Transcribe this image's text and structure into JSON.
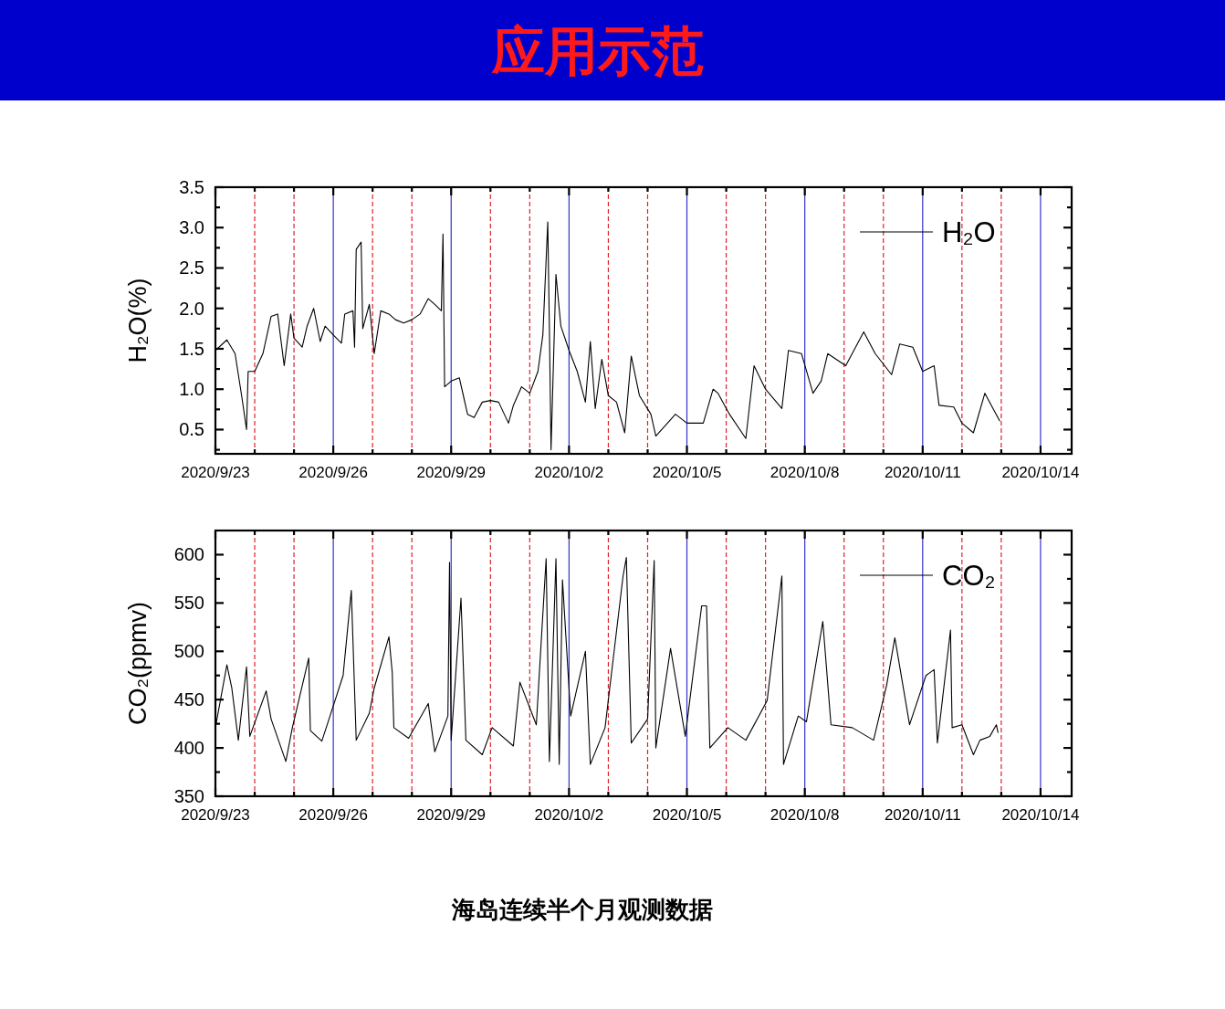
{
  "chart_data": [
    {
      "type": "line",
      "title": "应用示范",
      "ylabel": "H₂O(%)",
      "legend": "top right",
      "grid": false,
      "xlim": [
        "2020-09-23",
        "2020-10-14T19:00"
      ],
      "xticks": [
        {
          "value": "2020-09-23",
          "label": "2020/9/23"
        },
        {
          "value": "2020-09-24",
          "label": null
        },
        {
          "value": "2020-09-25",
          "label": null
        },
        {
          "value": "2020-09-26",
          "label": "2020/9/26"
        },
        {
          "value": "2020-09-27",
          "label": null
        },
        {
          "value": "2020-09-28",
          "label": null
        },
        {
          "value": "2020-09-29",
          "label": "2020/9/29"
        },
        {
          "value": "2020-09-30",
          "label": null
        },
        {
          "value": "2020-10-01",
          "label": null
        },
        {
          "value": "2020-10-02",
          "label": "2020/10/2"
        },
        {
          "value": "2020-10-03",
          "label": null
        },
        {
          "value": "2020-10-04",
          "label": null
        },
        {
          "value": "2020-10-05",
          "label": "2020/10/5"
        },
        {
          "value": "2020-10-06",
          "label": null
        },
        {
          "value": "2020-10-07",
          "label": null
        },
        {
          "value": "2020-10-08",
          "label": "2020/10/8"
        },
        {
          "value": "2020-10-09",
          "label": null
        },
        {
          "value": "2020-10-10",
          "label": null
        },
        {
          "value": "2020-10-11",
          "label": "2020/10/11"
        },
        {
          "value": "2020-10-12",
          "label": null
        },
        {
          "value": "2020-10-13",
          "label": null
        },
        {
          "value": "2020-10-14",
          "label": "2020/10/14"
        }
      ],
      "ylim": [
        0.2,
        3.5
      ],
      "yticks": [
        {
          "value": 0.25,
          "label": null
        },
        {
          "value": 0.5,
          "label": "0.5"
        },
        {
          "value": 0.75,
          "label": null
        },
        {
          "value": 1,
          "label": "1.0"
        },
        {
          "value": 1.25,
          "label": null
        },
        {
          "value": 1.5,
          "label": "1.5"
        },
        {
          "value": 1.75,
          "label": null
        },
        {
          "value": 2,
          "label": "2.0"
        },
        {
          "value": 2.25,
          "label": null
        },
        {
          "value": 2.5,
          "label": "2.5"
        },
        {
          "value": 2.75,
          "label": null
        },
        {
          "value": 3,
          "label": "3.0"
        },
        {
          "value": 3.25,
          "label": null
        },
        {
          "value": 3.5,
          "label": "3.5"
        }
      ],
      "ref_lines": [
        {
          "axis": "x",
          "value": "2020-09-24",
          "color": "#e0202a",
          "line_style": "dashed"
        },
        {
          "axis": "x",
          "value": "2020-09-25",
          "color": "#e0202a",
          "line_style": "dashed"
        },
        {
          "axis": "x",
          "value": "2020-09-26",
          "color": "#3333cc",
          "line_style": "solid"
        },
        {
          "axis": "x",
          "value": "2020-09-27",
          "color": "#e0202a",
          "line_style": "dashed"
        },
        {
          "axis": "x",
          "value": "2020-09-28",
          "color": "#e0202a",
          "line_style": "dashed"
        },
        {
          "axis": "x",
          "value": "2020-09-29",
          "color": "#3333cc",
          "line_style": "solid"
        },
        {
          "axis": "x",
          "value": "2020-09-30",
          "color": "#e0202a",
          "line_style": "dashed"
        },
        {
          "axis": "x",
          "value": "2020-10-01",
          "color": "#e0202a",
          "line_style": "dashed"
        },
        {
          "axis": "x",
          "value": "2020-10-02",
          "color": "#3333cc",
          "line_style": "solid"
        },
        {
          "axis": "x",
          "value": "2020-10-03",
          "color": "#e0202a",
          "line_style": "dashed"
        },
        {
          "axis": "x",
          "value": "2020-10-04",
          "color": "#e0202a",
          "line_style": "dashed"
        },
        {
          "axis": "x",
          "value": "2020-10-05",
          "color": "#3333cc",
          "line_style": "solid"
        },
        {
          "axis": "x",
          "value": "2020-10-06",
          "color": "#e0202a",
          "line_style": "dashed"
        },
        {
          "axis": "x",
          "value": "2020-10-07",
          "color": "#e0202a",
          "line_style": "dashed"
        },
        {
          "axis": "x",
          "value": "2020-10-08",
          "color": "#3333cc",
          "line_style": "solid"
        },
        {
          "axis": "x",
          "value": "2020-10-09",
          "color": "#e0202a",
          "line_style": "dashed"
        },
        {
          "axis": "x",
          "value": "2020-10-10",
          "color": "#e0202a",
          "line_style": "dashed"
        },
        {
          "axis": "x",
          "value": "2020-10-11",
          "color": "#3333cc",
          "line_style": "solid"
        },
        {
          "axis": "x",
          "value": "2020-10-12",
          "color": "#e0202a",
          "line_style": "dashed"
        },
        {
          "axis": "x",
          "value": "2020-10-13",
          "color": "#e0202a",
          "line_style": "dashed"
        },
        {
          "axis": "x",
          "value": "2020-10-14",
          "color": "#3333cc",
          "line_style": "solid"
        }
      ],
      "series": [
        {
          "name": "H₂O",
          "color": "#000000",
          "x": [
            "2020-09-23T00:00",
            "2020-09-23T07:00",
            "2020-09-23T12:00",
            "2020-09-23T16:00",
            "2020-09-23T19:00",
            "2020-09-23T20:00",
            "2020-09-24T00:00",
            "2020-09-24T05:00",
            "2020-09-24T10:00",
            "2020-09-24T14:00",
            "2020-09-24T18:00",
            "2020-09-24T22:00",
            "2020-09-25T00:00",
            "2020-09-25T05:00",
            "2020-09-25T08:00",
            "2020-09-25T12:00",
            "2020-09-25T16:00",
            "2020-09-25T19:00",
            "2020-09-26T00:00",
            "2020-09-26T05:00",
            "2020-09-26T07:00",
            "2020-09-26T12:00",
            "2020-09-26T13:00",
            "2020-09-26T14:00",
            "2020-09-26T17:00",
            "2020-09-26T18:00",
            "2020-09-26T22:00",
            "2020-09-27T01:00",
            "2020-09-27T05:00",
            "2020-09-27T10:00",
            "2020-09-27T14:00",
            "2020-09-27T19:00",
            "2020-09-28T00:00",
            "2020-09-28T05:00",
            "2020-09-28T10:00",
            "2020-09-28T14:00",
            "2020-09-28T18:00",
            "2020-09-28T19:00",
            "2020-09-28T20:00",
            "2020-09-29T00:00",
            "2020-09-29T05:00",
            "2020-09-29T10:00",
            "2020-09-29T14:00",
            "2020-09-29T19:00",
            "2020-09-30T00:00",
            "2020-09-30T05:00",
            "2020-09-30T11:00",
            "2020-09-30T14:00",
            "2020-09-30T19:00",
            "2020-10-01T00:00",
            "2020-10-01T05:00",
            "2020-10-01T08:00",
            "2020-10-01T11:00",
            "2020-10-01T12:00",
            "2020-10-01T13:00",
            "2020-10-01T16:00",
            "2020-10-01T19:00",
            "2020-10-02T00:00",
            "2020-10-02T05:00",
            "2020-10-02T10:00",
            "2020-10-02T13:00",
            "2020-10-02T16:00",
            "2020-10-02T20:00",
            "2020-10-03T00:00",
            "2020-10-03T05:00",
            "2020-10-03T10:00",
            "2020-10-03T14:00",
            "2020-10-03T19:00",
            "2020-10-04T02:00",
            "2020-10-04T05:00",
            "2020-10-04T17:00",
            "2020-10-05T00:00",
            "2020-10-05T10:00",
            "2020-10-05T16:00",
            "2020-10-05T19:00",
            "2020-10-06T02:00",
            "2020-10-06T12:00",
            "2020-10-06T17:00",
            "2020-10-07T00:00",
            "2020-10-07T10:00",
            "2020-10-07T14:00",
            "2020-10-07T22:00",
            "2020-10-08T05:00",
            "2020-10-08T10:00",
            "2020-10-08T14:00",
            "2020-10-09T01:00",
            "2020-10-09T12:00",
            "2020-10-09T19:00",
            "2020-10-10T05:00",
            "2020-10-10T10:00",
            "2020-10-10T18:00",
            "2020-10-11T00:00",
            "2020-10-11T07:00",
            "2020-10-11T10:00",
            "2020-10-11T19:00",
            "2020-10-12T00:00",
            "2020-10-12T07:00",
            "2020-10-12T14:00",
            "2020-10-12T19:00",
            "2020-10-12T23:00"
          ],
          "values": [
            1.48,
            1.61,
            1.44,
            0.92,
            0.5,
            1.22,
            1.22,
            1.44,
            1.9,
            1.93,
            1.29,
            1.93,
            1.63,
            1.52,
            1.78,
            2.0,
            1.59,
            1.78,
            1.67,
            1.57,
            1.93,
            1.97,
            1.52,
            2.73,
            2.82,
            1.75,
            2.05,
            1.44,
            1.97,
            1.93,
            1.86,
            1.82,
            1.86,
            1.93,
            2.12,
            2.05,
            1.97,
            2.92,
            1.03,
            1.1,
            1.14,
            0.69,
            0.65,
            0.84,
            0.86,
            0.84,
            0.58,
            0.8,
            1.03,
            0.95,
            1.22,
            1.67,
            3.07,
            1.75,
            0.25,
            2.42,
            1.78,
            1.48,
            1.22,
            0.84,
            1.59,
            0.76,
            1.37,
            0.92,
            0.84,
            0.46,
            1.41,
            0.92,
            0.69,
            0.42,
            0.69,
            0.58,
            0.58,
            1.0,
            0.95,
            0.69,
            0.39,
            1.29,
            1.0,
            0.76,
            1.48,
            1.44,
            0.95,
            1.1,
            1.44,
            1.29,
            1.71,
            1.44,
            1.18,
            1.56,
            1.52,
            1.22,
            1.29,
            0.8,
            0.78,
            0.58,
            0.46,
            0.95,
            0.76,
            0.61
          ]
        }
      ]
    },
    {
      "type": "line",
      "ylabel": "CO₂(ppmv)",
      "legend": "top right",
      "grid": false,
      "annotations": [
        "海岛连续半个月观测数据"
      ],
      "xlim": [
        "2020-09-23",
        "2020-10-14T19:00"
      ],
      "xticks": [
        {
          "value": "2020-09-23",
          "label": "2020/9/23"
        },
        {
          "value": "2020-09-24",
          "label": null
        },
        {
          "value": "2020-09-25",
          "label": null
        },
        {
          "value": "2020-09-26",
          "label": "2020/9/26"
        },
        {
          "value": "2020-09-27",
          "label": null
        },
        {
          "value": "2020-09-28",
          "label": null
        },
        {
          "value": "2020-09-29",
          "label": "2020/9/29"
        },
        {
          "value": "2020-09-30",
          "label": null
        },
        {
          "value": "2020-10-01",
          "label": null
        },
        {
          "value": "2020-10-02",
          "label": "2020/10/2"
        },
        {
          "value": "2020-10-03",
          "label": null
        },
        {
          "value": "2020-10-04",
          "label": null
        },
        {
          "value": "2020-10-05",
          "label": "2020/10/5"
        },
        {
          "value": "2020-10-06",
          "label": null
        },
        {
          "value": "2020-10-07",
          "label": null
        },
        {
          "value": "2020-10-08",
          "label": "2020/10/8"
        },
        {
          "value": "2020-10-09",
          "label": null
        },
        {
          "value": "2020-10-10",
          "label": null
        },
        {
          "value": "2020-10-11",
          "label": "2020/10/11"
        },
        {
          "value": "2020-10-12",
          "label": null
        },
        {
          "value": "2020-10-13",
          "label": null
        },
        {
          "value": "2020-10-14",
          "label": "2020/10/14"
        }
      ],
      "ylim": [
        350,
        625
      ],
      "yticks": [
        350,
        {
          "value": 375,
          "label": null
        },
        400,
        {
          "value": 425,
          "label": null
        },
        450,
        {
          "value": 475,
          "label": null
        },
        500,
        {
          "value": 525,
          "label": null
        },
        550,
        {
          "value": 575,
          "label": null
        },
        600
      ],
      "ref_lines": [
        {
          "axis": "x",
          "value": "2020-09-24",
          "color": "#e0202a",
          "line_style": "dashed"
        },
        {
          "axis": "x",
          "value": "2020-09-25",
          "color": "#e0202a",
          "line_style": "dashed"
        },
        {
          "axis": "x",
          "value": "2020-09-26",
          "color": "#3333cc",
          "line_style": "solid"
        },
        {
          "axis": "x",
          "value": "2020-09-27",
          "color": "#e0202a",
          "line_style": "dashed"
        },
        {
          "axis": "x",
          "value": "2020-09-28",
          "color": "#e0202a",
          "line_style": "dashed"
        },
        {
          "axis": "x",
          "value": "2020-09-29",
          "color": "#3333cc",
          "line_style": "solid"
        },
        {
          "axis": "x",
          "value": "2020-09-30",
          "color": "#e0202a",
          "line_style": "dashed"
        },
        {
          "axis": "x",
          "value": "2020-10-01",
          "color": "#e0202a",
          "line_style": "dashed"
        },
        {
          "axis": "x",
          "value": "2020-10-02",
          "color": "#3333cc",
          "line_style": "solid"
        },
        {
          "axis": "x",
          "value": "2020-10-03",
          "color": "#e0202a",
          "line_style": "dashed"
        },
        {
          "axis": "x",
          "value": "2020-10-04",
          "color": "#e0202a",
          "line_style": "dashed"
        },
        {
          "axis": "x",
          "value": "2020-10-05",
          "color": "#3333cc",
          "line_style": "solid"
        },
        {
          "axis": "x",
          "value": "2020-10-06",
          "color": "#e0202a",
          "line_style": "dashed"
        },
        {
          "axis": "x",
          "value": "2020-10-07",
          "color": "#e0202a",
          "line_style": "dashed"
        },
        {
          "axis": "x",
          "value": "2020-10-08",
          "color": "#3333cc",
          "line_style": "solid"
        },
        {
          "axis": "x",
          "value": "2020-10-09",
          "color": "#e0202a",
          "line_style": "dashed"
        },
        {
          "axis": "x",
          "value": "2020-10-10",
          "color": "#e0202a",
          "line_style": "dashed"
        },
        {
          "axis": "x",
          "value": "2020-10-11",
          "color": "#3333cc",
          "line_style": "solid"
        },
        {
          "axis": "x",
          "value": "2020-10-12",
          "color": "#e0202a",
          "line_style": "dashed"
        },
        {
          "axis": "x",
          "value": "2020-10-13",
          "color": "#e0202a",
          "line_style": "dashed"
        },
        {
          "axis": "x",
          "value": "2020-10-14",
          "color": "#3333cc",
          "line_style": "solid"
        }
      ],
      "series": [
        {
          "name": "CO₂",
          "color": "#000000",
          "x": [
            "2020-09-23T00:00",
            "2020-09-23T07:00",
            "2020-09-23T10:00",
            "2020-09-23T14:00",
            "2020-09-23T19:00",
            "2020-09-23T21:00",
            "2020-09-24T07:00",
            "2020-09-24T10:00",
            "2020-09-24T19:00",
            "2020-09-24T23:00",
            "2020-09-25T09:00",
            "2020-09-25T10:00",
            "2020-09-25T17:00",
            "2020-09-25T22:00",
            "2020-09-26T06:00",
            "2020-09-26T11:00",
            "2020-09-26T14:00",
            "2020-09-26T22:00",
            "2020-09-27T01:00",
            "2020-09-27T10:00",
            "2020-09-27T12:00",
            "2020-09-27T13:00",
            "2020-09-27T22:00",
            "2020-09-28T10:00",
            "2020-09-28T14:00",
            "2020-09-28T22:00",
            "2020-09-28T23:00",
            "2020-09-29T00:00",
            "2020-09-29T06:00",
            "2020-09-29T09:00",
            "2020-09-29T19:00",
            "2020-09-30T01:00",
            "2020-09-30T14:00",
            "2020-09-30T18:00",
            "2020-10-01T04:00",
            "2020-10-01T10:00",
            "2020-10-01T12:00",
            "2020-10-01T16:00",
            "2020-10-01T18:00",
            "2020-10-01T20:00",
            "2020-10-02T01:00",
            "2020-10-02T10:00",
            "2020-10-02T13:00",
            "2020-10-02T22:00",
            "2020-10-03T09:00",
            "2020-10-03T11:00",
            "2020-10-03T14:00",
            "2020-10-04T00:00",
            "2020-10-04T04:00",
            "2020-10-04T05:00",
            "2020-10-04T14:00",
            "2020-10-04T23:00",
            "2020-10-05T09:00",
            "2020-10-05T12:00",
            "2020-10-05T14:00",
            "2020-10-06T01:00",
            "2020-10-06T12:00",
            "2020-10-07T01:00",
            "2020-10-07T10:00",
            "2020-10-07T11:00",
            "2020-10-07T20:00",
            "2020-10-08T01:00",
            "2020-10-08T11:00",
            "2020-10-08T16:00",
            "2020-10-09T05:00",
            "2020-10-09T18:00",
            "2020-10-10T02:00",
            "2020-10-10T07:00",
            "2020-10-10T16:00",
            "2020-10-11T02:00",
            "2020-10-11T07:00",
            "2020-10-11T09:00",
            "2020-10-11T17:00",
            "2020-10-11T18:00",
            "2020-10-12T00:00",
            "2020-10-12T07:00",
            "2020-10-12T11:00",
            "2020-10-12T17:00",
            "2020-10-12T21:00",
            "2020-10-12T22:00"
          ],
          "values": [
            421,
            486,
            462,
            408,
            484,
            412,
            459,
            430,
            386,
            421,
            493,
            418,
            407,
            433,
            475,
            563,
            408,
            436,
            462,
            515,
            478,
            421,
            410,
            446,
            396,
            433,
            592,
            408,
            555,
            408,
            393,
            421,
            402,
            468,
            424,
            596,
            386,
            596,
            383,
            574,
            433,
            500,
            383,
            421,
            578,
            597,
            405,
            430,
            594,
            400,
            503,
            412,
            547,
            547,
            400,
            421,
            408,
            449,
            578,
            383,
            433,
            427,
            531,
            424,
            421,
            408,
            465,
            514,
            424,
            475,
            481,
            405,
            522,
            421,
            424,
            393,
            408,
            412,
            424,
            416
          ]
        }
      ]
    }
  ]
}
